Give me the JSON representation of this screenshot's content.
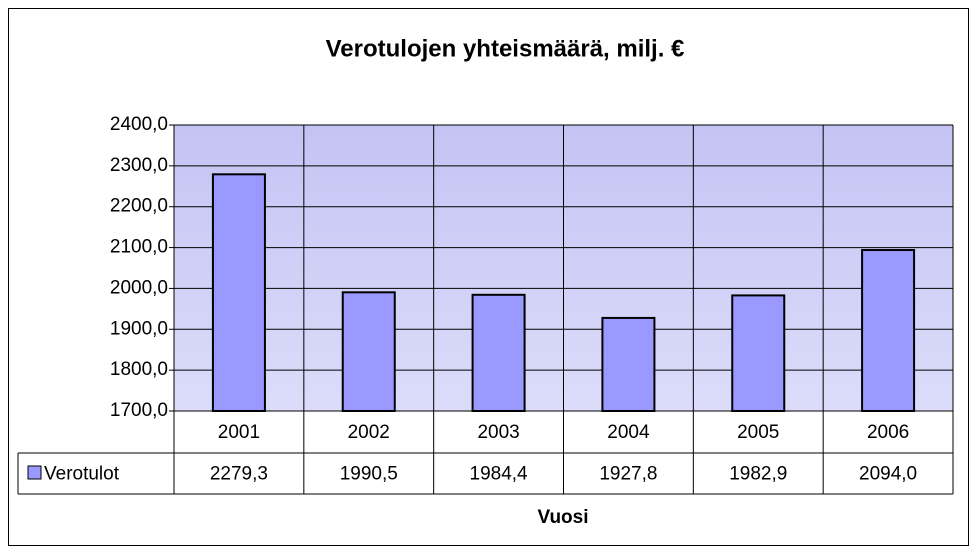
{
  "chart_data": {
    "type": "bar",
    "title": "Verotulojen yhteismäärä, milj. €",
    "x_label": "Vuosi",
    "categories": [
      "2001",
      "2002",
      "2003",
      "2004",
      "2005",
      "2006"
    ],
    "series": [
      {
        "name": "Verotulot",
        "color": "#9999ff",
        "values": [
          2279.3,
          1990.5,
          1984.4,
          1927.8,
          1982.9,
          2094.0
        ],
        "value_labels": [
          "2279,3",
          "1990,5",
          "1984,4",
          "1927,8",
          "1982,9",
          "2094,0"
        ]
      }
    ],
    "ylim": [
      1700,
      2400
    ],
    "yticks": [
      {
        "value": 1700,
        "label": "1700,0"
      },
      {
        "value": 1800,
        "label": "1800,0"
      },
      {
        "value": 1900,
        "label": "1900,0"
      },
      {
        "value": 2000,
        "label": "2000,0"
      },
      {
        "value": 2100,
        "label": "2100,0"
      },
      {
        "value": 2200,
        "label": "2200,0"
      },
      {
        "value": 2300,
        "label": "2300,0"
      },
      {
        "value": 2400,
        "label": "2400,0"
      }
    ],
    "grid": true
  }
}
